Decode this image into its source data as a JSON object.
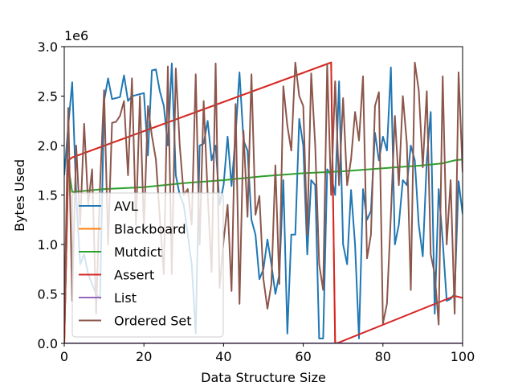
{
  "chart_data": {
    "type": "line",
    "xlabel": "Data Structure Size",
    "ylabel": "Bytes Used",
    "offset_label": "1e6",
    "xlim": [
      0,
      100
    ],
    "ylim": [
      0,
      3000000
    ],
    "xticks": [
      0,
      20,
      40,
      60,
      80,
      100
    ],
    "yticks": [
      0,
      500000,
      1000000,
      1500000,
      2000000,
      2500000,
      3000000
    ],
    "xtick_labels": [
      "0",
      "20",
      "40",
      "60",
      "80",
      "100"
    ],
    "ytick_labels": [
      "0.0",
      "0.5",
      "1.0",
      "1.5",
      "2.0",
      "2.5",
      "3.0"
    ],
    "grid": false,
    "legend_position": "lower-left",
    "series": [
      {
        "name": "AVL",
        "color": "#1f77b4",
        "x": [
          0,
          1,
          2,
          3,
          4,
          5,
          6,
          7,
          8,
          9,
          10,
          11,
          12,
          13,
          14,
          15,
          16,
          17,
          18,
          19,
          20,
          21,
          22,
          23,
          24,
          25,
          26,
          27,
          28,
          29,
          30,
          31,
          32,
          33,
          34,
          35,
          36,
          37,
          38,
          39,
          40,
          41,
          42,
          43,
          44,
          45,
          46,
          47,
          48,
          49,
          50,
          51,
          52,
          53,
          54,
          55,
          56,
          57,
          58,
          59,
          60,
          61,
          62,
          63,
          64,
          65,
          66,
          67,
          68,
          69,
          70,
          71,
          72,
          73,
          74,
          75,
          76,
          77,
          78,
          79,
          80,
          81,
          82,
          83,
          84,
          85,
          86,
          87,
          88,
          89,
          90,
          91,
          92,
          93,
          94,
          95,
          96,
          97,
          98,
          99,
          100
        ],
        "y": [
          1700000,
          2200000,
          2640000,
          1500000,
          800000,
          900000,
          700000,
          600000,
          500000,
          450000,
          2450000,
          2680000,
          2470000,
          2480000,
          2490000,
          2710000,
          2450000,
          2500000,
          2510000,
          2520000,
          2530000,
          1900000,
          2760000,
          2770000,
          2550000,
          2400000,
          2000000,
          2830000,
          1700000,
          1500000,
          1400000,
          1100000,
          800000,
          100000,
          2000000,
          2020000,
          2250000,
          1850000,
          2000000,
          1400000,
          1600000,
          2090000,
          1590000,
          2100000,
          2740000,
          2050000,
          1950000,
          1250000,
          1100000,
          650000,
          750000,
          1050000,
          800000,
          500000,
          700000,
          1650000,
          100000,
          1100000,
          1100000,
          2270000,
          2000000,
          900000,
          1650000,
          1600000,
          50000,
          50000,
          1760000,
          1700000,
          1500000,
          2650000,
          1000000,
          800000,
          1550000,
          1000000,
          50000,
          1560000,
          1250000,
          1340000,
          2130000,
          1850000,
          2090000,
          1950000,
          2790000,
          1000000,
          1200000,
          1650000,
          1600000,
          2000000,
          1850000,
          1200000,
          880000,
          1850000,
          2340000,
          300000,
          1560000,
          1040000,
          430000,
          450000,
          500000,
          1640000,
          1310000
        ]
      },
      {
        "name": "Blackboard",
        "color": "#ff7f0e",
        "x": [
          0,
          1,
          2,
          67,
          68,
          100
        ],
        "y": [
          0,
          1850000,
          1880000,
          2840000,
          0,
          0
        ]
      },
      {
        "name": "Mutdict",
        "color": "#2ca02c",
        "x": [
          0,
          1,
          2,
          10,
          20,
          30,
          40,
          50,
          60,
          70,
          80,
          90,
          95,
          98,
          100
        ],
        "y": [
          0,
          1800000,
          1530000,
          1560000,
          1580000,
          1620000,
          1650000,
          1690000,
          1720000,
          1740000,
          1770000,
          1800000,
          1820000,
          1850000,
          1860000
        ]
      },
      {
        "name": "Assert",
        "color": "#d62728",
        "x": [
          0,
          1,
          2,
          67,
          68,
          69,
          98,
          100
        ],
        "y": [
          0,
          1850000,
          1880000,
          2840000,
          0,
          10000,
          480000,
          460000
        ]
      },
      {
        "name": "List",
        "color": "#9467bd",
        "x": [
          0,
          100
        ],
        "y": [
          0,
          0
        ]
      },
      {
        "name": "Ordered Set",
        "color": "#8c564b",
        "x": [
          0,
          1,
          2,
          3,
          4,
          5,
          6,
          7,
          8,
          9,
          10,
          11,
          12,
          13,
          14,
          15,
          16,
          17,
          18,
          19,
          20,
          21,
          22,
          23,
          24,
          25,
          26,
          27,
          28,
          29,
          30,
          31,
          32,
          33,
          34,
          35,
          36,
          37,
          38,
          39,
          40,
          41,
          42,
          43,
          44,
          45,
          46,
          47,
          48,
          49,
          50,
          51,
          52,
          53,
          54,
          55,
          56,
          57,
          58,
          59,
          60,
          61,
          62,
          63,
          64,
          65,
          66,
          67,
          68,
          69,
          70,
          71,
          72,
          73,
          74,
          75,
          76,
          77,
          78,
          79,
          80,
          81,
          82,
          83,
          84,
          85,
          86,
          87,
          88,
          89,
          90,
          91,
          92,
          93,
          94,
          95,
          96,
          97,
          98,
          99,
          100
        ],
        "y": [
          200000,
          2380000,
          430000,
          2000000,
          1200000,
          2220000,
          1400000,
          1760000,
          300000,
          1600000,
          2560000,
          1000000,
          2230000,
          2240000,
          2300000,
          2450000,
          1700000,
          2680000,
          1200000,
          2500000,
          1150000,
          2400000,
          2100000,
          1860000,
          1270000,
          700000,
          2800000,
          700000,
          2780000,
          2000000,
          1500000,
          1560000,
          1200000,
          2720000,
          1000000,
          2450000,
          1500000,
          720000,
          2830000,
          560000,
          1040000,
          1400000,
          530000,
          2420000,
          400000,
          2150000,
          1280000,
          2720000,
          1300000,
          1490000,
          650000,
          350000,
          600000,
          1800000,
          600000,
          2600000,
          2200000,
          1950000,
          2840000,
          2500000,
          2400000,
          1100000,
          2730000,
          2000000,
          800000,
          540000,
          2820000,
          1500000,
          2650000,
          1600000,
          2480000,
          1600000,
          1860000,
          2340000,
          2050000,
          2700000,
          860000,
          1100000,
          2400000,
          2540000,
          200000,
          400000,
          1300000,
          2300000,
          1600000,
          2500000,
          2020000,
          540000,
          2840000,
          2560000,
          1780000,
          2550000,
          900000,
          700000,
          190000,
          2700000,
          1000000,
          1650000,
          300000,
          2740000,
          1730000
        ]
      }
    ]
  }
}
